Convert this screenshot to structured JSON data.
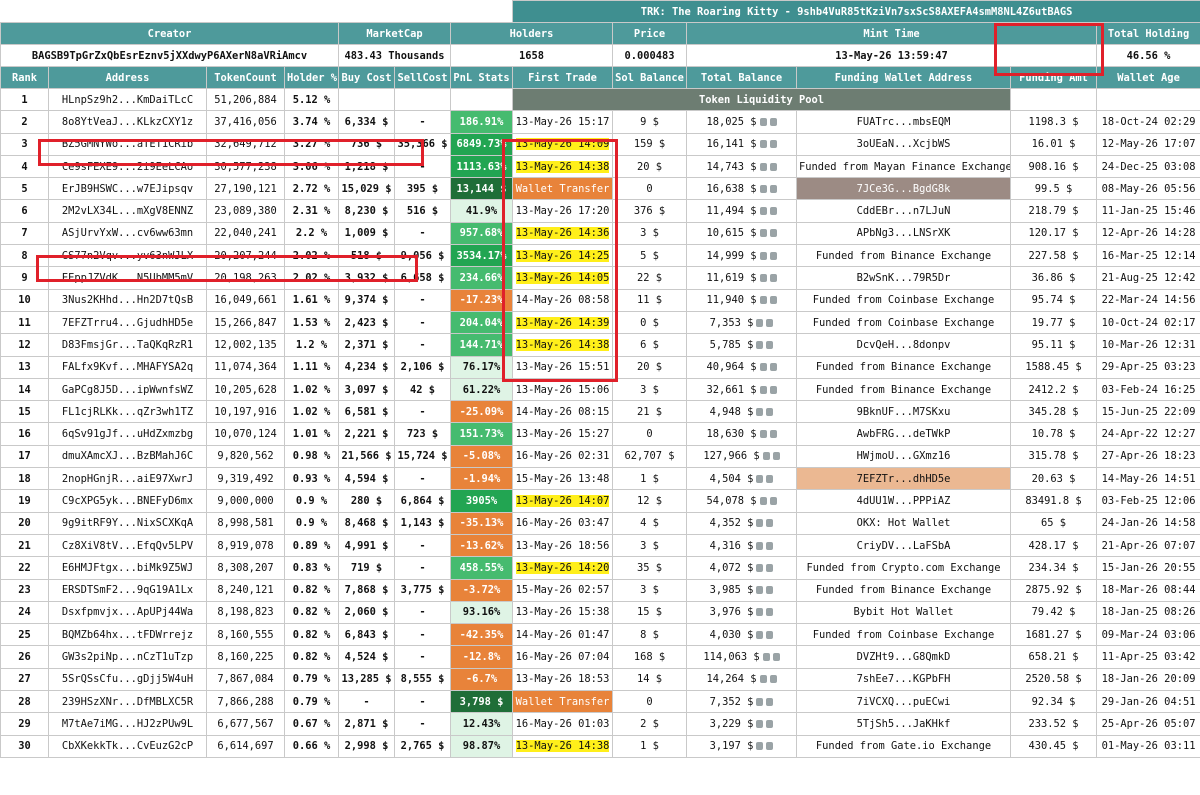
{
  "title": "TRK: The Roaring Kitty - 9shb4VuR85tKziVn7sxScS8AXEFA4smM8NL4Z6utBAGS",
  "summary": {
    "headers": [
      "Creator",
      "MarketCap",
      "Holders",
      "Price",
      "Mint Time",
      "Total Holding"
    ],
    "values": [
      "BAGSB9TpGrZxQbEsrEznv5jXXdwyP6AXerN8aVRiAmcv",
      "483.43 Thousands",
      "1658",
      "0.000483",
      "13-May-26 13:59:47",
      "46.56 %"
    ]
  },
  "table": {
    "headers": [
      "Rank",
      "Address",
      "TokenCount",
      "Holder %",
      "Buy Cost",
      "SellCost",
      "PnL Stats",
      "First Trade",
      "Sol Balance",
      "Total Balance",
      "Funding Wallet Address",
      "Funding Amt",
      "Wallet Age"
    ],
    "liquidity_pool": "Token Liquidity Pool",
    "rows": [
      [
        1,
        "HLnpSz9h2...KmDaiTLcC",
        "51,206,884",
        "5.12 %",
        null,
        null,
        null,
        null,
        null,
        null,
        null,
        null,
        null
      ],
      [
        2,
        "8o8YtVeaJ...KLkzCXY1z",
        "37,416,056",
        "3.74 %",
        "6,334 $",
        "-",
        "186.91%",
        "13-May-26 15:17",
        "9 $",
        "18,025 $",
        "FUATrc...mbsEQM",
        "1198.3 $",
        "18-Oct-24 02:29"
      ],
      [
        3,
        "BZ5GMNYWo...aTET1CRib",
        "32,649,712",
        "3.27 %",
        "736 $",
        "35,366 $",
        "6849.73%",
        "13-May-26 14:09",
        "159 $",
        "16,141 $",
        "3oUEaN...XcjbWS",
        "16.01 $",
        "12-May-26 17:07"
      ],
      [
        4,
        "Ce9sFEXE9...2i9EeLCAo",
        "30,577,238",
        "3.06 %",
        "1,218 $",
        "-",
        "1113.63%",
        "13-May-26 14:38",
        "20 $",
        "14,743 $",
        "Funded from Mayan Finance Exchange",
        "908.16 $",
        "24-Dec-25 03:08"
      ],
      [
        5,
        "ErJB9HSWC...w7EJipsqv",
        "27,190,121",
        "2.72 %",
        "15,029 $",
        "395 $",
        "13,144 $",
        "Wallet Transfer",
        "0",
        "16,638 $",
        "7JCe3G...BgdG8k",
        "99.5 $",
        "08-May-26 05:56"
      ],
      [
        6,
        "2M2vLX34L...mXgV8ENNZ",
        "23,089,380",
        "2.31 %",
        "8,230 $",
        "516 $",
        "41.9%",
        "13-May-26 17:20",
        "376 $",
        "11,494 $",
        "CddEBr...n7LJuN",
        "218.79 $",
        "11-Jan-25 15:46"
      ],
      [
        7,
        "ASjUrvYxW...cv6ww63mn",
        "22,040,241",
        "2.2 %",
        "1,009 $",
        "-",
        "957.68%",
        "13-May-26 14:36",
        "3 $",
        "10,615 $",
        "APbNg3...LNSrXK",
        "120.17 $",
        "12-Apr-26 14:28"
      ],
      [
        8,
        "GS77n2Vqv...yv63nWJLX",
        "20,207,244",
        "2.02 %",
        "518 $",
        "9,056 $",
        "3534.17%",
        "13-May-26 14:25",
        "5 $",
        "14,999 $",
        "Funded from Binance Exchange",
        "227.58 $",
        "16-Mar-25 12:14"
      ],
      [
        9,
        "EEppJZVdK...N5UbMM5mV",
        "20,198,263",
        "2.02 %",
        "3,932 $",
        "6,658 $",
        "234.66%",
        "13-May-26 14:05",
        "22 $",
        "11,619 $",
        "B2wSnK...79R5Dr",
        "36.86 $",
        "21-Aug-25 12:42"
      ],
      [
        10,
        "3Nus2KHhd...Hn2D7tQsB",
        "16,049,661",
        "1.61 %",
        "9,374 $",
        "-",
        "-17.23%",
        "14-May-26 08:58",
        "11 $",
        "11,940 $",
        "Funded from Coinbase Exchange",
        "95.74 $",
        "22-Mar-24 14:56"
      ],
      [
        11,
        "7EFZTrru4...GjudhHD5e",
        "15,266,847",
        "1.53 %",
        "2,423 $",
        "-",
        "204.04%",
        "13-May-26 14:39",
        "0 $",
        "7,353 $",
        "Funded from Coinbase Exchange",
        "19.77 $",
        "10-Oct-24 02:17"
      ],
      [
        12,
        "D83FmsjGr...TaQKqRzR1",
        "12,002,135",
        "1.2 %",
        "2,371 $",
        "-",
        "144.71%",
        "13-May-26 14:38",
        "6 $",
        "5,785 $",
        "DcvQeH...8donpv",
        "95.11 $",
        "10-Mar-26 12:31"
      ],
      [
        13,
        "FALfx9Kvf...MHAFYSA2q",
        "11,074,364",
        "1.11 %",
        "4,234 $",
        "2,106 $",
        "76.17%",
        "13-May-26 15:51",
        "20 $",
        "40,964 $",
        "Funded from Binance Exchange",
        "1588.45 $",
        "29-Apr-25 03:23"
      ],
      [
        14,
        "GaPCg8J5D...ipWwnfsWZ",
        "10,205,628",
        "1.02 %",
        "3,097 $",
        "42 $",
        "61.22%",
        "13-May-26 15:06",
        "3 $",
        "32,661 $",
        "Funded from Binance Exchange",
        "2412.2 $",
        "03-Feb-24 16:25"
      ],
      [
        15,
        "FL1cjRLKk...qZr3wh1TZ",
        "10,197,916",
        "1.02 %",
        "6,581 $",
        "-",
        "-25.09%",
        "14-May-26 08:15",
        "21 $",
        "4,948 $",
        "9BknUF...M7SKxu",
        "345.28 $",
        "15-Jun-25 22:09"
      ],
      [
        16,
        "6qSv91gJf...uHdZxmzbg",
        "10,070,124",
        "1.01 %",
        "2,221 $",
        "723 $",
        "151.73%",
        "13-May-26 15:27",
        "0",
        "18,630 $",
        "AwbFRG...deTWkP",
        "10.78 $",
        "24-Apr-22 12:27"
      ],
      [
        17,
        "dmuXAmcXJ...BzBMahJ6C",
        "9,820,562",
        "0.98 %",
        "21,566 $",
        "15,724 $",
        "-5.08%",
        "16-May-26 02:31",
        "62,707 $",
        "127,966 $",
        "HWjmoU...GXmz16",
        "315.78 $",
        "27-Apr-26 18:23"
      ],
      [
        18,
        "2nopHGnjR...aiE97XwrJ",
        "9,319,492",
        "0.93 %",
        "4,594 $",
        "-",
        "-1.94%",
        "15-May-26 13:48",
        "1 $",
        "4,504 $",
        "7EFZTr...dhHD5e",
        "20.63 $",
        "14-May-26 14:51"
      ],
      [
        19,
        "C9cXPG5yk...BNEFyD6mx",
        "9,000,000",
        "0.9 %",
        "280 $",
        "6,864 $",
        "3905%",
        "13-May-26 14:07",
        "12 $",
        "54,078 $",
        "4dUU1W...PPPiAZ",
        "83491.8 $",
        "03-Feb-25 12:06"
      ],
      [
        20,
        "9g9itRF9Y...NixSCXKqA",
        "8,998,581",
        "0.9 %",
        "8,468 $",
        "1,143 $",
        "-35.13%",
        "16-May-26 03:47",
        "4 $",
        "4,352 $",
        "OKX: Hot Wallet",
        "65 $",
        "24-Jan-26 14:58"
      ],
      [
        21,
        "Cz8XiV8tV...EfqQv5LPV",
        "8,919,078",
        "0.89 %",
        "4,991 $",
        "-",
        "-13.62%",
        "13-May-26 18:56",
        "3 $",
        "4,316 $",
        "CriyDV...LaFSbA",
        "428.17 $",
        "21-Apr-26 07:07"
      ],
      [
        22,
        "E6HMJFtgx...biMk9Z5WJ",
        "8,308,207",
        "0.83 %",
        "719 $",
        "-",
        "458.55%",
        "13-May-26 14:20",
        "35 $",
        "4,072 $",
        "Funded from Crypto.com Exchange",
        "234.34 $",
        "15-Jan-26 20:55"
      ],
      [
        23,
        "ERSDTSmF2...9qG19A1Lx",
        "8,240,121",
        "0.82 %",
        "7,868 $",
        "3,775 $",
        "-3.72%",
        "15-May-26 02:57",
        "3 $",
        "3,985 $",
        "Funded from Binance Exchange",
        "2875.92 $",
        "18-Mar-26 08:44"
      ],
      [
        24,
        "Dsxfpmvjx...ApUPj44Wa",
        "8,198,823",
        "0.82 %",
        "2,060 $",
        "-",
        "93.16%",
        "13-May-26 15:38",
        "15 $",
        "3,976 $",
        "Bybit Hot Wallet",
        "79.42 $",
        "18-Jan-25 08:26"
      ],
      [
        25,
        "BQMZb64hx...tFDWrrejz",
        "8,160,555",
        "0.82 %",
        "6,843 $",
        "-",
        "-42.35%",
        "14-May-26 01:47",
        "8 $",
        "4,030 $",
        "Funded from Coinbase Exchange",
        "1681.27 $",
        "09-Mar-24 03:06"
      ],
      [
        26,
        "GW3s2piNp...nCzT1uTzp",
        "8,160,225",
        "0.82 %",
        "4,524 $",
        "-",
        "-12.8%",
        "16-May-26 07:04",
        "168 $",
        "114,063 $",
        "DVZHt9...G8QmkD",
        "658.21 $",
        "11-Apr-25 03:42"
      ],
      [
        27,
        "5SrQSsCfu...gDjj5W4uH",
        "7,867,084",
        "0.79 %",
        "13,285 $",
        "8,555 $",
        "-6.7%",
        "13-May-26 18:53",
        "14 $",
        "14,264 $",
        "7shEe7...KGPbFH",
        "2520.58 $",
        "18-Jan-26 20:09"
      ],
      [
        28,
        "239HSzXNr...DfMBLXC5R",
        "7,866,288",
        "0.79 %",
        "-",
        "-",
        "3,798 $",
        "Wallet Transfer",
        "0",
        "7,352 $",
        "7iVCXQ...puECwi",
        "92.34 $",
        "29-Jan-26 04:51"
      ],
      [
        29,
        "M7tAe7iMG...HJ2zPUw9L",
        "6,677,567",
        "0.67 %",
        "2,871 $",
        "-",
        "12.43%",
        "16-May-26 01:03",
        "2 $",
        "3,229 $",
        "5TjSh5...JaKHkf",
        "233.52 $",
        "25-Apr-26 05:07"
      ],
      [
        30,
        "CbXKekkTk...CvEuzG2cP",
        "6,614,697",
        "0.66 %",
        "2,998 $",
        "2,765 $",
        "98.87%",
        "13-May-26 14:38",
        "1 $",
        "3,197 $",
        "Funded from Gate.io Exchange",
        "430.45 $",
        "01-May-26 03:11"
      ]
    ]
  }
}
